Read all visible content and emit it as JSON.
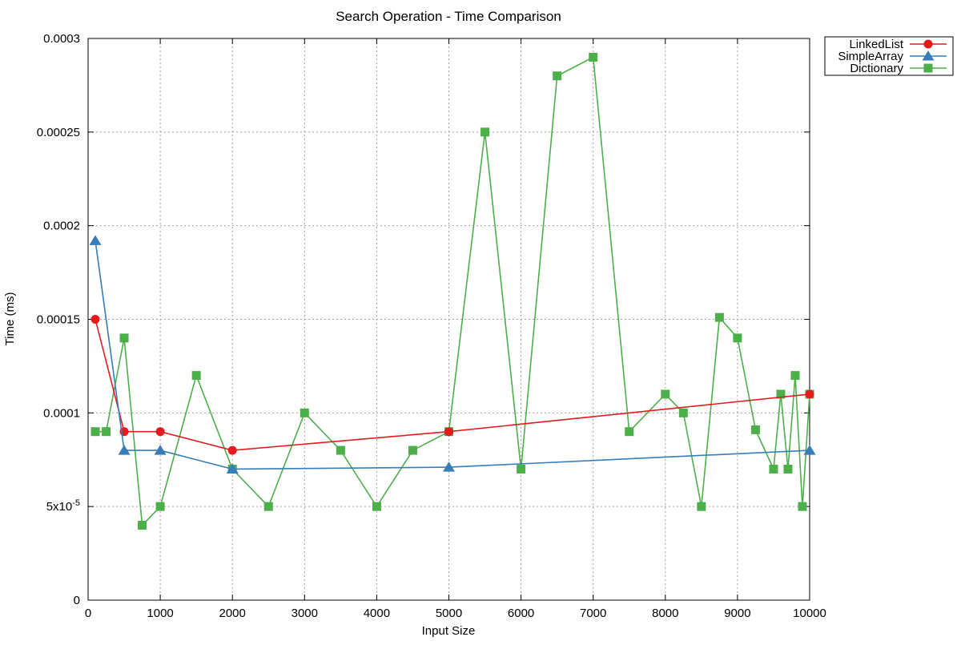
{
  "chart_data": {
    "type": "line",
    "title": "Search Operation - Time Comparison",
    "xlabel": "Input Size",
    "ylabel": "Time (ms)",
    "xlim": [
      0,
      10000
    ],
    "ylim": [
      0,
      0.0003
    ],
    "x_ticks": [
      0,
      1000,
      2000,
      3000,
      4000,
      5000,
      6000,
      7000,
      8000,
      9000,
      10000
    ],
    "x_tick_labels": [
      "0",
      "1000",
      "2000",
      "3000",
      "4000",
      "5000",
      "6000",
      "7000",
      "8000",
      "9000",
      "10000"
    ],
    "y_ticks": [
      0,
      5e-05,
      0.0001,
      0.00015,
      0.0002,
      0.00025,
      0.0003
    ],
    "y_tick_labels": [
      "0",
      "5x10-5",
      "0.0001",
      "0.00015",
      "0.0002",
      "0.00025",
      "0.0003"
    ],
    "grid": true,
    "legend_position": "top-right, outside plot",
    "series": [
      {
        "name": "LinkedList",
        "color": "#e41a1c",
        "marker": "circle",
        "x": [
          100,
          500,
          1000,
          2000,
          5000,
          10000
        ],
        "y": [
          0.00015,
          9e-05,
          9e-05,
          8e-05,
          9e-05,
          0.00011
        ]
      },
      {
        "name": "SimpleArray",
        "color": "#377eb8",
        "marker": "triangle",
        "x": [
          100,
          500,
          1000,
          2000,
          5000,
          10000
        ],
        "y": [
          0.000192,
          8e-05,
          8e-05,
          7e-05,
          7.1e-05,
          8e-05
        ]
      },
      {
        "name": "Dictionary",
        "color": "#4daf4a",
        "marker": "square",
        "x": [
          100,
          250,
          500,
          750,
          1000,
          1500,
          2000,
          2500,
          3000,
          3500,
          4000,
          4500,
          5000,
          5500,
          6000,
          6500,
          7000,
          7500,
          8000,
          8250,
          8500,
          8750,
          9000,
          9250,
          9500,
          9600,
          9700,
          9800,
          9900,
          10000
        ],
        "y": [
          9e-05,
          9e-05,
          0.00014,
          4e-05,
          5e-05,
          0.00012,
          7e-05,
          5e-05,
          0.0001,
          8e-05,
          5e-05,
          8e-05,
          9e-05,
          0.00025,
          7e-05,
          0.00028,
          0.00029,
          9e-05,
          0.00011,
          0.0001,
          5e-05,
          0.000151,
          0.00014,
          9.1e-05,
          7e-05,
          0.00011,
          7e-05,
          0.00012,
          5e-05,
          0.00011
        ]
      }
    ]
  }
}
